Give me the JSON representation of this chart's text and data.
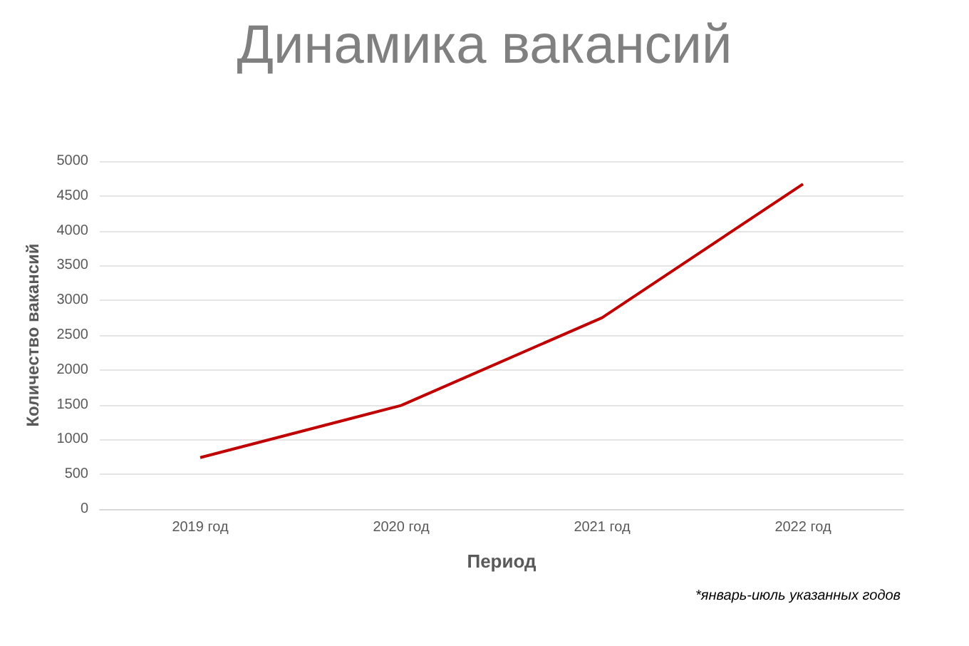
{
  "chart_data": {
    "type": "line",
    "title": "Динамика вакансий",
    "xlabel": "Период",
    "ylabel": "Количество вакансий",
    "categories": [
      "2019 год",
      "2020 год",
      "2021 год",
      "2022 год"
    ],
    "series": [
      {
        "color": "#c00000",
        "values": [
          740,
          1490,
          2750,
          4670
        ]
      }
    ],
    "ylim": [
      0,
      5000
    ],
    "yticks": [
      0,
      500,
      1000,
      1500,
      2000,
      2500,
      3000,
      3500,
      4000,
      4500,
      5000
    ],
    "grid": "y",
    "marker": "none",
    "line_style": "solid",
    "annotations": [
      "*январь-июль указанных годов"
    ]
  }
}
